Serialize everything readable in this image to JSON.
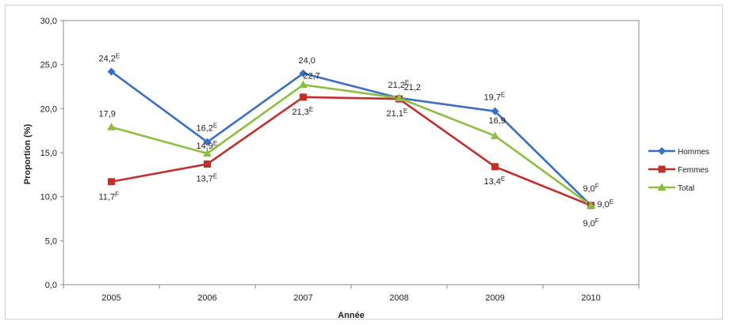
{
  "chart_data": {
    "type": "line",
    "xlabel": "Année",
    "ylabel": "Proportion (%)",
    "ylim": [
      0,
      30
    ],
    "yticks": [
      "0,0",
      "5,0",
      "10,0",
      "15,0",
      "20,0",
      "25,0",
      "30,0"
    ],
    "categories": [
      "2005",
      "2006",
      "2007",
      "2008",
      "2009",
      "2010"
    ],
    "legend_position": "right",
    "series": [
      {
        "name": "Hommes",
        "color": "#3a6fc3",
        "marker": "diamond",
        "values": [
          24.2,
          16.2,
          24.0,
          21.2,
          19.7,
          9.0
        ],
        "labels": [
          {
            "text": "24,2",
            "flag": "E"
          },
          {
            "text": "16,2",
            "flag": "E"
          },
          {
            "text": "24,0",
            "flag": ""
          },
          {
            "text": "21,2",
            "flag": "E"
          },
          {
            "text": "19,7",
            "flag": "E"
          },
          {
            "text": "9,0",
            "flag": "F"
          }
        ]
      },
      {
        "name": "Femmes",
        "color": "#c0302b",
        "marker": "square",
        "values": [
          11.7,
          13.7,
          21.3,
          21.1,
          13.4,
          9.0
        ],
        "labels": [
          {
            "text": "11,7",
            "flag": "F"
          },
          {
            "text": "13,7",
            "flag": "E"
          },
          {
            "text": "21,3",
            "flag": "E"
          },
          {
            "text": "21,1",
            "flag": "E"
          },
          {
            "text": "13,4",
            "flag": "E"
          },
          {
            "text": "9,0",
            "flag": "E"
          }
        ]
      },
      {
        "name": "Total",
        "color": "#8cbe3f",
        "marker": "triangle",
        "values": [
          17.9,
          14.9,
          22.7,
          21.2,
          16.9,
          9.0
        ],
        "labels": [
          {
            "text": "17,9",
            "flag": ""
          },
          {
            "text": "14,9",
            "flag": "E"
          },
          {
            "text": "22,7",
            "flag": ""
          },
          {
            "text": "21,2",
            "flag": ""
          },
          {
            "text": "16,9",
            "flag": ""
          },
          {
            "text": "9,0",
            "flag": "F"
          }
        ]
      }
    ]
  }
}
